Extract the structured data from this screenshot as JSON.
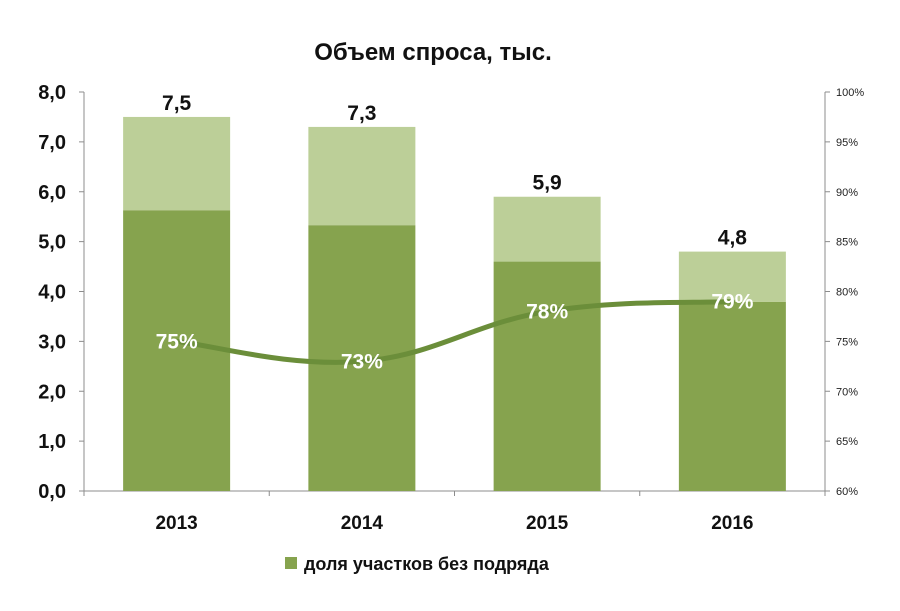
{
  "chart_data": {
    "type": "bar",
    "title": "Объем спроса, тыс.",
    "categories": [
      "2013",
      "2014",
      "2015",
      "2016"
    ],
    "totals": [
      7.5,
      7.3,
      5.9,
      4.8
    ],
    "total_labels": [
      "7,5",
      "7,3",
      "5,9",
      "4,8"
    ],
    "series": [
      {
        "values": [
          5.63,
          5.33,
          4.6,
          3.79
        ],
        "color": "#86a34e"
      },
      {
        "values": [
          1.87,
          1.97,
          1.3,
          1.01
        ],
        "color": "#bccf98"
      },
      {
        "name": "доля участков без подряда",
        "values": [
          75,
          73,
          78,
          79
        ],
        "color": "#6b8e3a",
        "axis": "secondary",
        "style": "line"
      }
    ],
    "share_labels": [
      "75%",
      "73%",
      "78%",
      "79%"
    ],
    "ylim": [
      0,
      8
    ],
    "yticks": [
      "0,0",
      "1,0",
      "2,0",
      "3,0",
      "4,0",
      "5,0",
      "6,0",
      "7,0",
      "8,0"
    ],
    "y2lim": [
      60,
      100
    ],
    "y2ticks": [
      "60%",
      "65%",
      "70%",
      "75%",
      "80%",
      "85%",
      "90%",
      "95%",
      "100%"
    ],
    "grid": false,
    "legend": {
      "position": "bottom",
      "label": "доля участков без подряда",
      "color": "#86a34e"
    }
  }
}
